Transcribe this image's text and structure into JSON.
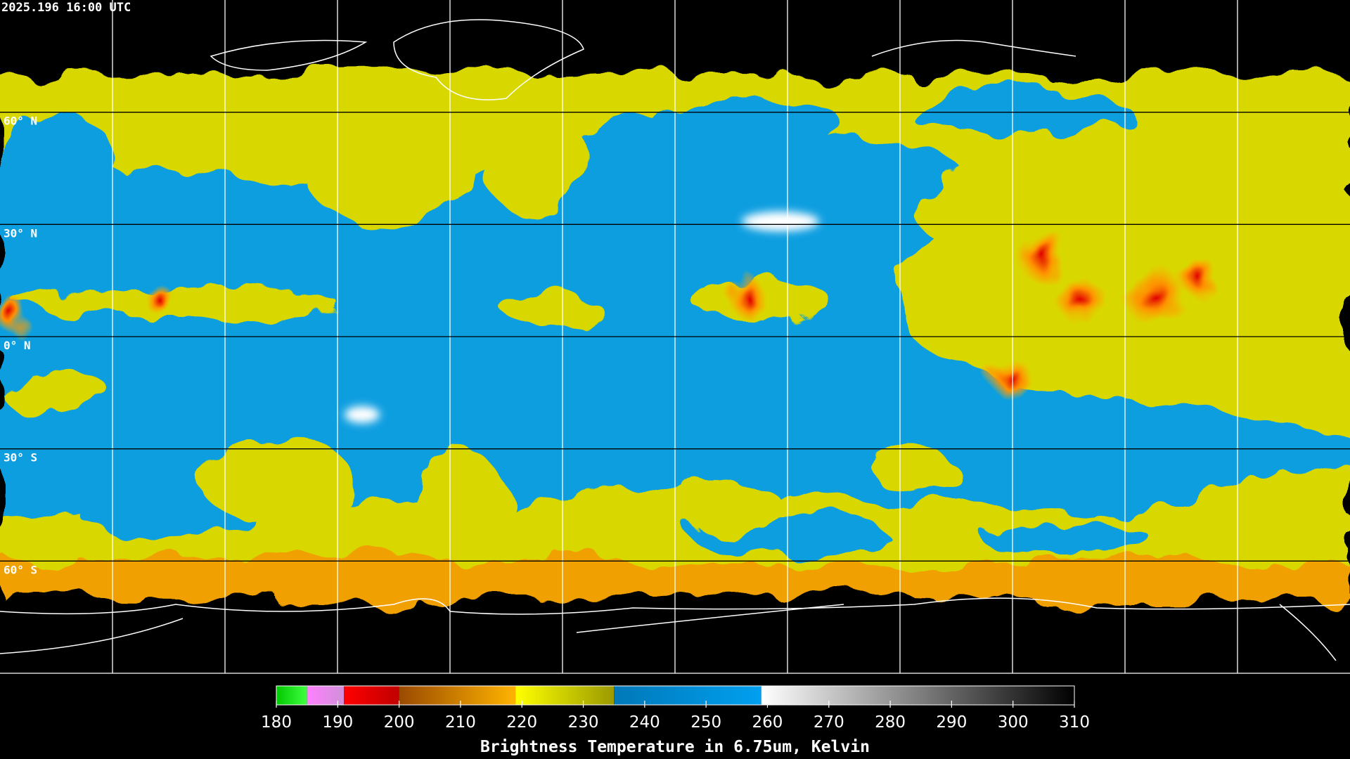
{
  "timestamp": "2025.196 16:00 UTC",
  "latitudes": [
    {
      "value": 60,
      "label": "60° N"
    },
    {
      "value": 30,
      "label": "30° N"
    },
    {
      "value": 0,
      "label": "0° N"
    },
    {
      "value": -30,
      "label": "30° S"
    },
    {
      "value": -60,
      "label": "60° S"
    }
  ],
  "colorbar": {
    "label": "Brightness Temperature in 6.75um, Kelvin",
    "lim": [
      180,
      310
    ],
    "ticks": [
      180,
      190,
      200,
      210,
      220,
      230,
      240,
      250,
      260,
      270,
      280,
      290,
      300,
      310
    ],
    "segments": [
      {
        "from": 180,
        "to": 185,
        "colors": [
          "#00c800",
          "#40ff40"
        ]
      },
      {
        "from": 185,
        "to": 191,
        "colors": [
          "#ff80ff",
          "#d090d8"
        ]
      },
      {
        "from": 191,
        "to": 200,
        "colors": [
          "#ff0000",
          "#c00000"
        ]
      },
      {
        "from": 200,
        "to": 219,
        "colors": [
          "#9a4a00",
          "#ffb400"
        ]
      },
      {
        "from": 219,
        "to": 235,
        "colors": [
          "#ffff00",
          "#9a9a00"
        ]
      },
      {
        "from": 235,
        "to": 259,
        "colors": [
          "#0078b8",
          "#00a0f0"
        ]
      },
      {
        "from": 259,
        "to": 310,
        "colors": [
          "#ffffff",
          "#000000"
        ]
      }
    ]
  }
}
